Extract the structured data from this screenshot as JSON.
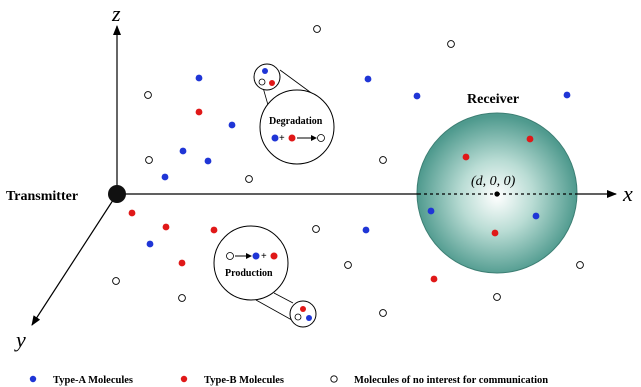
{
  "axes": {
    "x": "x",
    "y": "y",
    "z": "z"
  },
  "transmitter_label": "Transmitter",
  "receiver": {
    "label": "Receiver",
    "coordinate": "(d, 0, 0)"
  },
  "reactions": {
    "degradation": "Degradation",
    "production": "Production"
  },
  "legend": {
    "type_a": "Type-A Molecules",
    "type_b": "Type-B Molecules",
    "none": "Molecules of no interest for communication"
  },
  "colors": {
    "type_a": "#1f35d6",
    "type_b": "#e01818",
    "receiver_center": "#ffffff",
    "receiver_edge": "#4f9a8e"
  }
}
